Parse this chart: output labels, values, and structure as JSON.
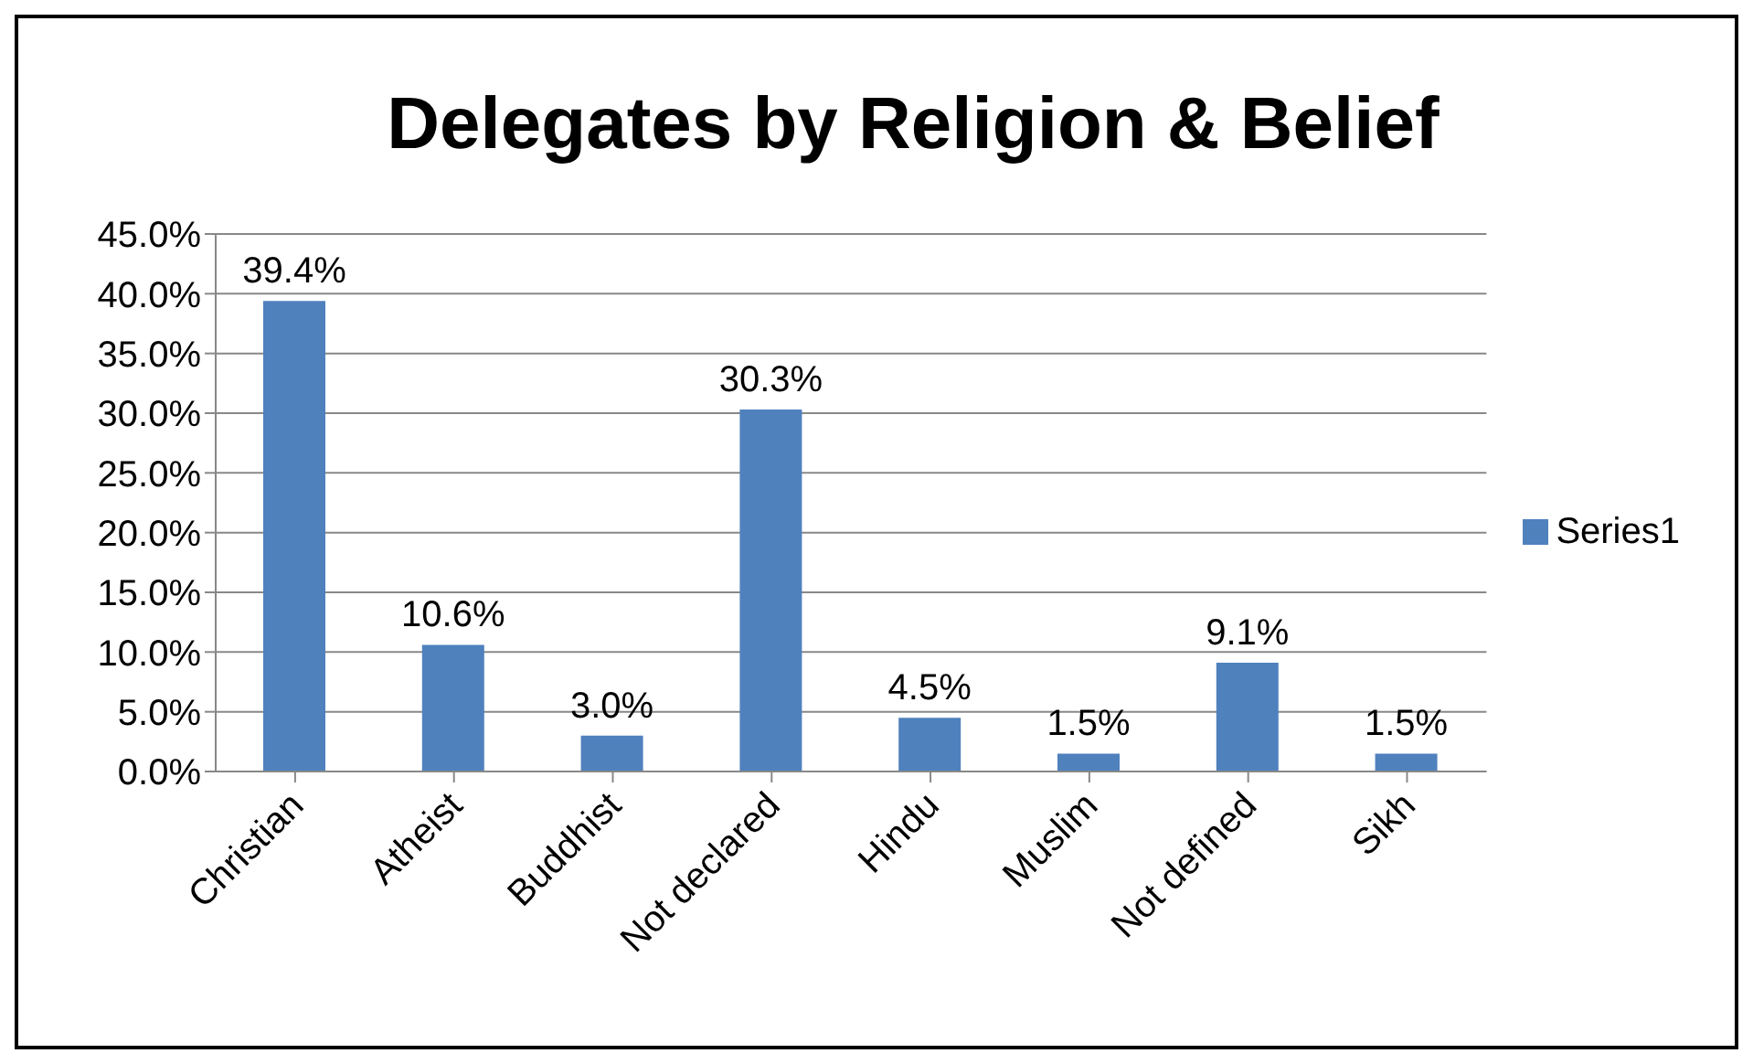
{
  "chart_data": {
    "type": "bar",
    "title": "Delegates by Religion & Belief",
    "categories": [
      "Christian",
      "Atheist",
      "Buddhist",
      "Not declared",
      "Hindu",
      "Muslim",
      "Not defined",
      "Sikh"
    ],
    "series": [
      {
        "name": "Series1",
        "color": "#4f81bd",
        "values": [
          39.4,
          10.6,
          3.0,
          30.3,
          4.5,
          1.5,
          9.1,
          1.5
        ],
        "value_labels": [
          "39.4%",
          "10.6%",
          "3.0%",
          "30.3%",
          "4.5%",
          "1.5%",
          "9.1%",
          "1.5%"
        ]
      }
    ],
    "ylim": [
      0,
      45
    ],
    "yticks": [
      {
        "value": 0,
        "label": "0.0%"
      },
      {
        "value": 5,
        "label": "5.0%"
      },
      {
        "value": 10,
        "label": "10.0%"
      },
      {
        "value": 15,
        "label": "15.0%"
      },
      {
        "value": 20,
        "label": "20.0%"
      },
      {
        "value": 25,
        "label": "25.0%"
      },
      {
        "value": 30,
        "label": "30.0%"
      },
      {
        "value": 35,
        "label": "35.0%"
      },
      {
        "value": 40,
        "label": "40.0%"
      },
      {
        "value": 45,
        "label": "45.0%"
      }
    ],
    "grid": "y",
    "legend": "right"
  }
}
